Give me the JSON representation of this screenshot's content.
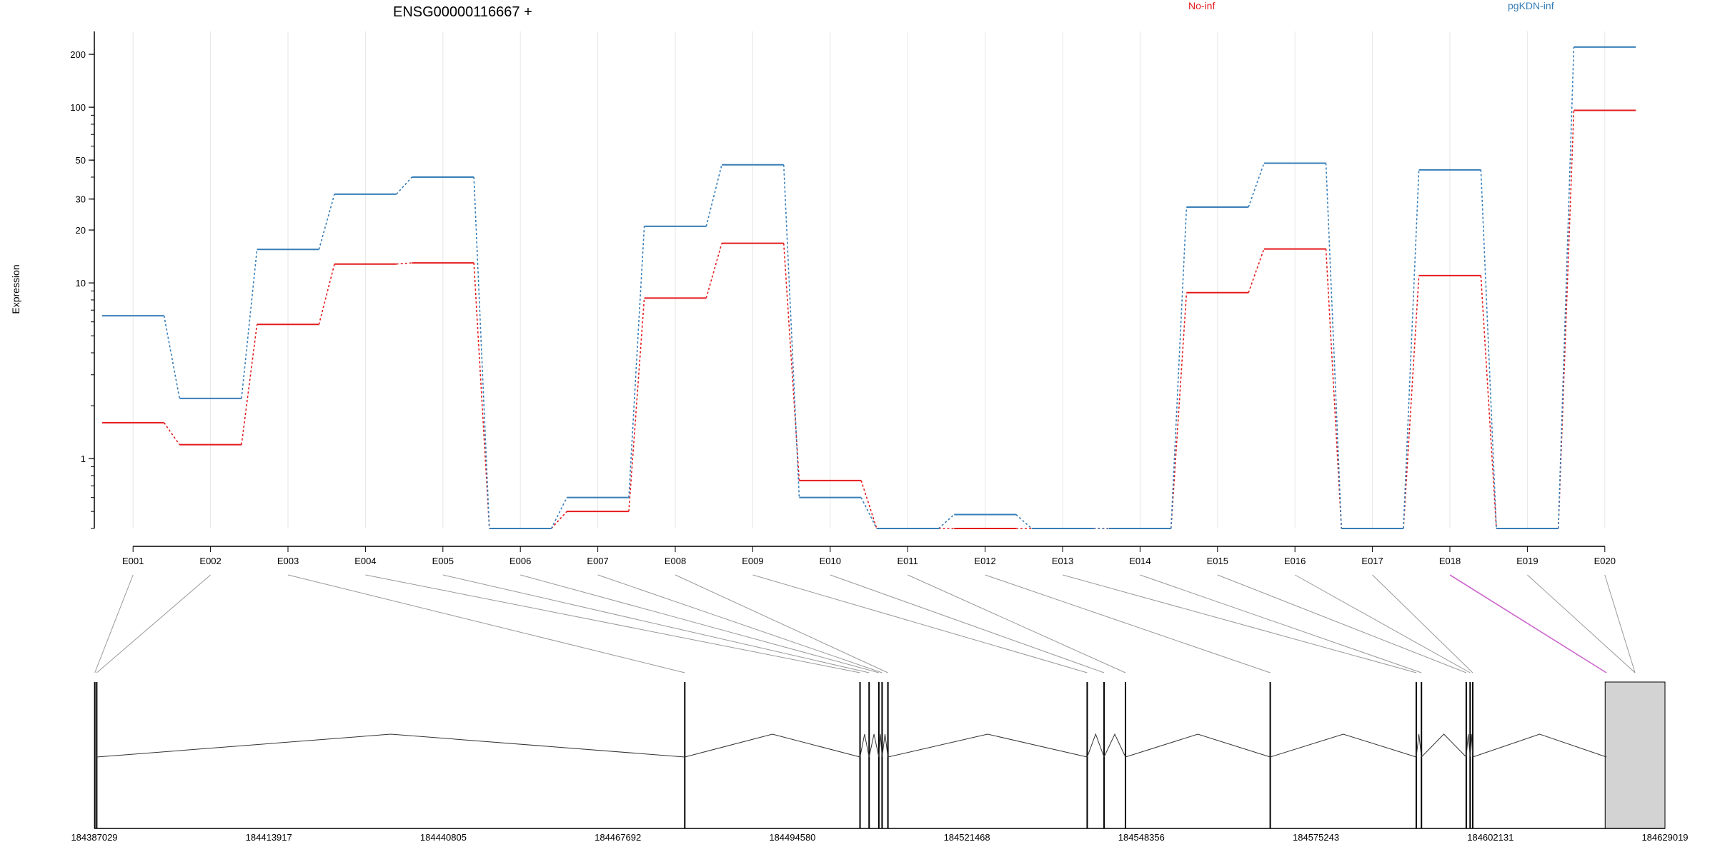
{
  "chart_data": {
    "type": "line",
    "title": "ENSG00000116667 +",
    "ylabel": "Expression",
    "y_scale": "log",
    "ylim": [
      0.4,
      270
    ],
    "y_ticks": [
      1,
      10,
      20,
      30,
      50,
      100,
      200
    ],
    "grid": "vertical, light",
    "legend_position": "top",
    "categories": [
      "E001",
      "E002",
      "E003",
      "E004",
      "E005",
      "E006",
      "E007",
      "E008",
      "E009",
      "E010",
      "E011",
      "E012",
      "E013",
      "E014",
      "E015",
      "E016",
      "E017",
      "E018",
      "E019",
      "E020"
    ],
    "series": [
      {
        "name": "No-inf",
        "color": "#e41a1c",
        "values": [
          1.6,
          1.2,
          5.8,
          12.8,
          13.0,
          0.4,
          0.5,
          8.2,
          16.8,
          0.75,
          0.4,
          0.4,
          0.4,
          0.4,
          8.8,
          15.6,
          0.4,
          11.0,
          0.4,
          96.0
        ]
      },
      {
        "name": "pgKDN-inf",
        "color": "#377eb8",
        "values": [
          6.5,
          2.2,
          15.5,
          32.0,
          40.0,
          0.4,
          0.6,
          21.0,
          47.0,
          0.6,
          0.4,
          0.48,
          0.4,
          0.4,
          27.0,
          48.0,
          0.4,
          44.0,
          0.4,
          220.0
        ]
      }
    ],
    "gene_model": {
      "coordinates": [
        "184387029",
        "184413917",
        "184440805",
        "184467692",
        "184494580",
        "184521468",
        "184548356",
        "184575243",
        "184602131",
        "184629019"
      ],
      "genomic_range": [
        184387029,
        184629019
      ],
      "exon_positions": [
        184387100,
        184387400,
        184478000,
        184505000,
        184506400,
        184507900,
        184508400,
        184509300,
        184540000,
        184542600,
        184545900,
        184568200,
        184590700,
        184591500,
        184598400,
        184599000,
        184599400,
        184620000
      ],
      "highlighted_exon": "E018",
      "highlight_color": "#cc66cc",
      "utr_block": [
        184619800,
        184629019
      ]
    }
  }
}
